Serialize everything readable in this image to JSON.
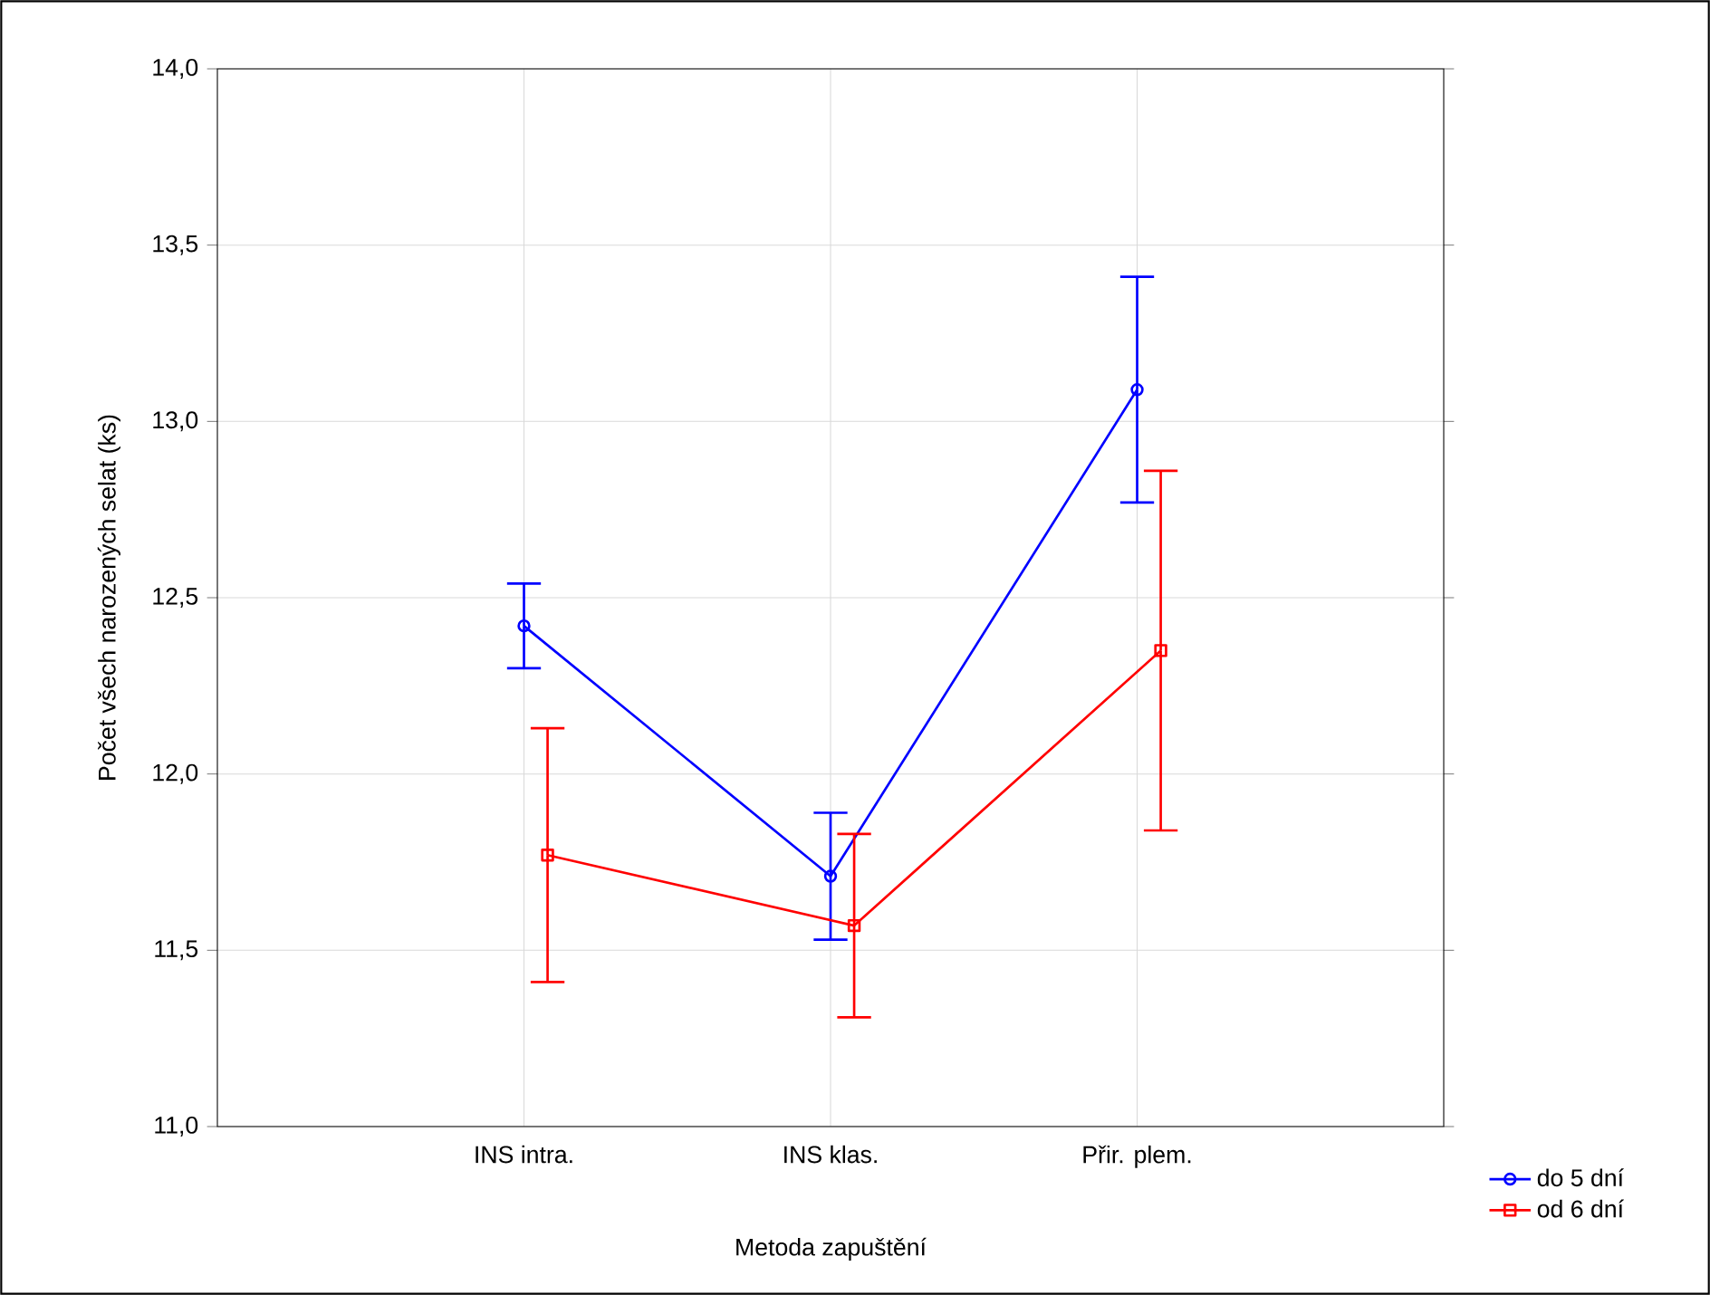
{
  "chart_data": {
    "type": "line",
    "xlabel": "Metoda zapuštění",
    "ylabel": "Počet všech narozených selat (ks)",
    "categories": [
      "INS intra.",
      "INS klas.",
      "Přir. plem."
    ],
    "series": [
      {
        "name": "do 5 dní",
        "color": "#0000ff",
        "marker": "circle",
        "values": [
          12.42,
          11.71,
          13.09
        ],
        "errors": [
          0.12,
          0.18,
          0.32
        ]
      },
      {
        "name": "od 6 dní",
        "color": "#ff0000",
        "marker": "square",
        "values": [
          11.77,
          11.57,
          12.35
        ],
        "errors": [
          0.36,
          0.26,
          0.51
        ]
      }
    ],
    "ylim": [
      11,
      14
    ],
    "yticks": [
      {
        "value": 11,
        "label": "11,0"
      },
      {
        "value": 11.5,
        "label": "11,5"
      },
      {
        "value": 12,
        "label": "12,0"
      },
      {
        "value": 12.5,
        "label": "12,5"
      },
      {
        "value": 13,
        "label": "13,0"
      },
      {
        "value": 13.5,
        "label": "13,5"
      },
      {
        "value": 14,
        "label": "14,0"
      }
    ],
    "grid": true,
    "legend": "bottom right",
    "line_style": "solid"
  }
}
